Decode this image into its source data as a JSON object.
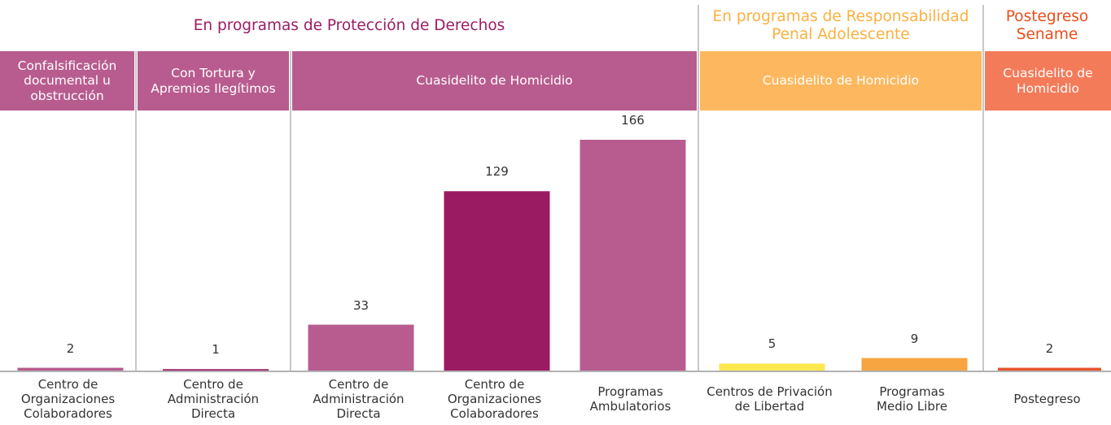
{
  "chart_data": {
    "type": "bar",
    "groups": [
      {
        "title": "En programas de Protección de Derechos",
        "color": "#9b1b63",
        "subgroups": [
          {
            "title": "Confalsificación\ndocumental u\nobstrucción",
            "color": "#b85c8f",
            "categories": [
              "Centro de\nOrganizaciones\nColaboradores"
            ],
            "values": [
              2
            ],
            "colors": [
              "#b85c8f"
            ]
          },
          {
            "title": "Con Tortura y\nApremios Ilegítimos",
            "color": "#b85c8f",
            "categories": [
              "Centro de\nAdministración\nDirecta"
            ],
            "values": [
              1
            ],
            "colors": [
              "#9b1b63"
            ]
          },
          {
            "title": "Cuasidelito de Homicidio",
            "color": "#b85c8f",
            "categories": [
              "Centro de\nAdministración\nDirecta",
              "Centro de\nOrganizaciones\nColaboradores",
              "Programas\nAmbulatorios"
            ],
            "values": [
              33,
              129,
              166
            ],
            "colors": [
              "#b85c8f",
              "#9b1b63",
              "#b85c8f"
            ]
          }
        ]
      },
      {
        "title": "En programas de Responsabilidad\nPenal Adolescente",
        "color": "#fbb040",
        "subgroups": [
          {
            "title": "Cuasidelito de Homicidio",
            "color": "#fdb85f",
            "categories": [
              "Centros de Privación\nde Libertad",
              "Programas\nMedio Libre"
            ],
            "values": [
              5,
              9
            ],
            "colors": [
              "#fce84f",
              "#f7a541"
            ]
          }
        ]
      },
      {
        "title": "Postegreso\nSename",
        "color": "#e94e1b",
        "subgroups": [
          {
            "title": "Cuasidelito de\nHomicidio",
            "color": "#f47b5a",
            "categories": [
              "Postegreso"
            ],
            "values": [
              2
            ],
            "colors": [
              "#e8542d"
            ]
          }
        ]
      }
    ]
  }
}
